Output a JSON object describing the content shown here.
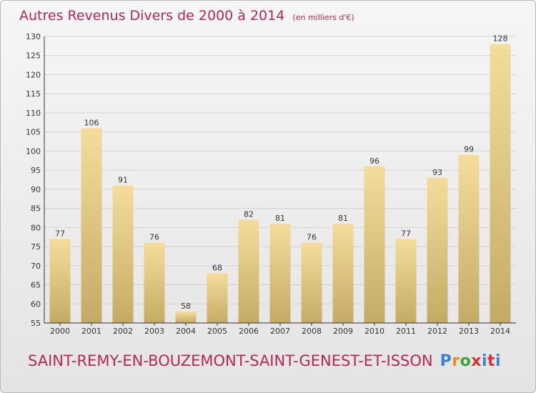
{
  "header": {
    "title": "Autres Revenus Divers de 2000 à 2014",
    "subtitle": "(en milliers d'€)"
  },
  "footer": {
    "place": "SAINT-REMY-EN-BOUZEMONT-SAINT-GENEST-ET-ISSON",
    "brand": "Proxiti"
  },
  "colors": {
    "title": "#b6265a",
    "bar_top": "#f4dd9c",
    "bar_bottom": "#c4ab65",
    "axis": "#333333",
    "brand": [
      "#3b7fd0",
      "#f08c1a",
      "#3aa63a",
      "#e03232",
      "#3b7fd0",
      "#e03232",
      "#3b7fd0"
    ]
  },
  "chart_data": {
    "type": "bar",
    "categories": [
      "2000",
      "2001",
      "2002",
      "2003",
      "2004",
      "2005",
      "2006",
      "2007",
      "2008",
      "2009",
      "2010",
      "2011",
      "2012",
      "2013",
      "2014"
    ],
    "values": [
      77,
      106,
      91,
      76,
      58,
      68,
      82,
      81,
      76,
      81,
      96,
      77,
      93,
      99,
      128
    ],
    "title": "Autres Revenus Divers de 2000 à 2014",
    "subtitle": "(en milliers d'€)",
    "xlabel": "",
    "ylabel": "",
    "ylim": [
      55,
      130
    ],
    "yticks": [
      55,
      60,
      65,
      70,
      75,
      80,
      85,
      90,
      95,
      100,
      105,
      110,
      115,
      120,
      125,
      130
    ],
    "grid": true,
    "data_labels": true
  }
}
